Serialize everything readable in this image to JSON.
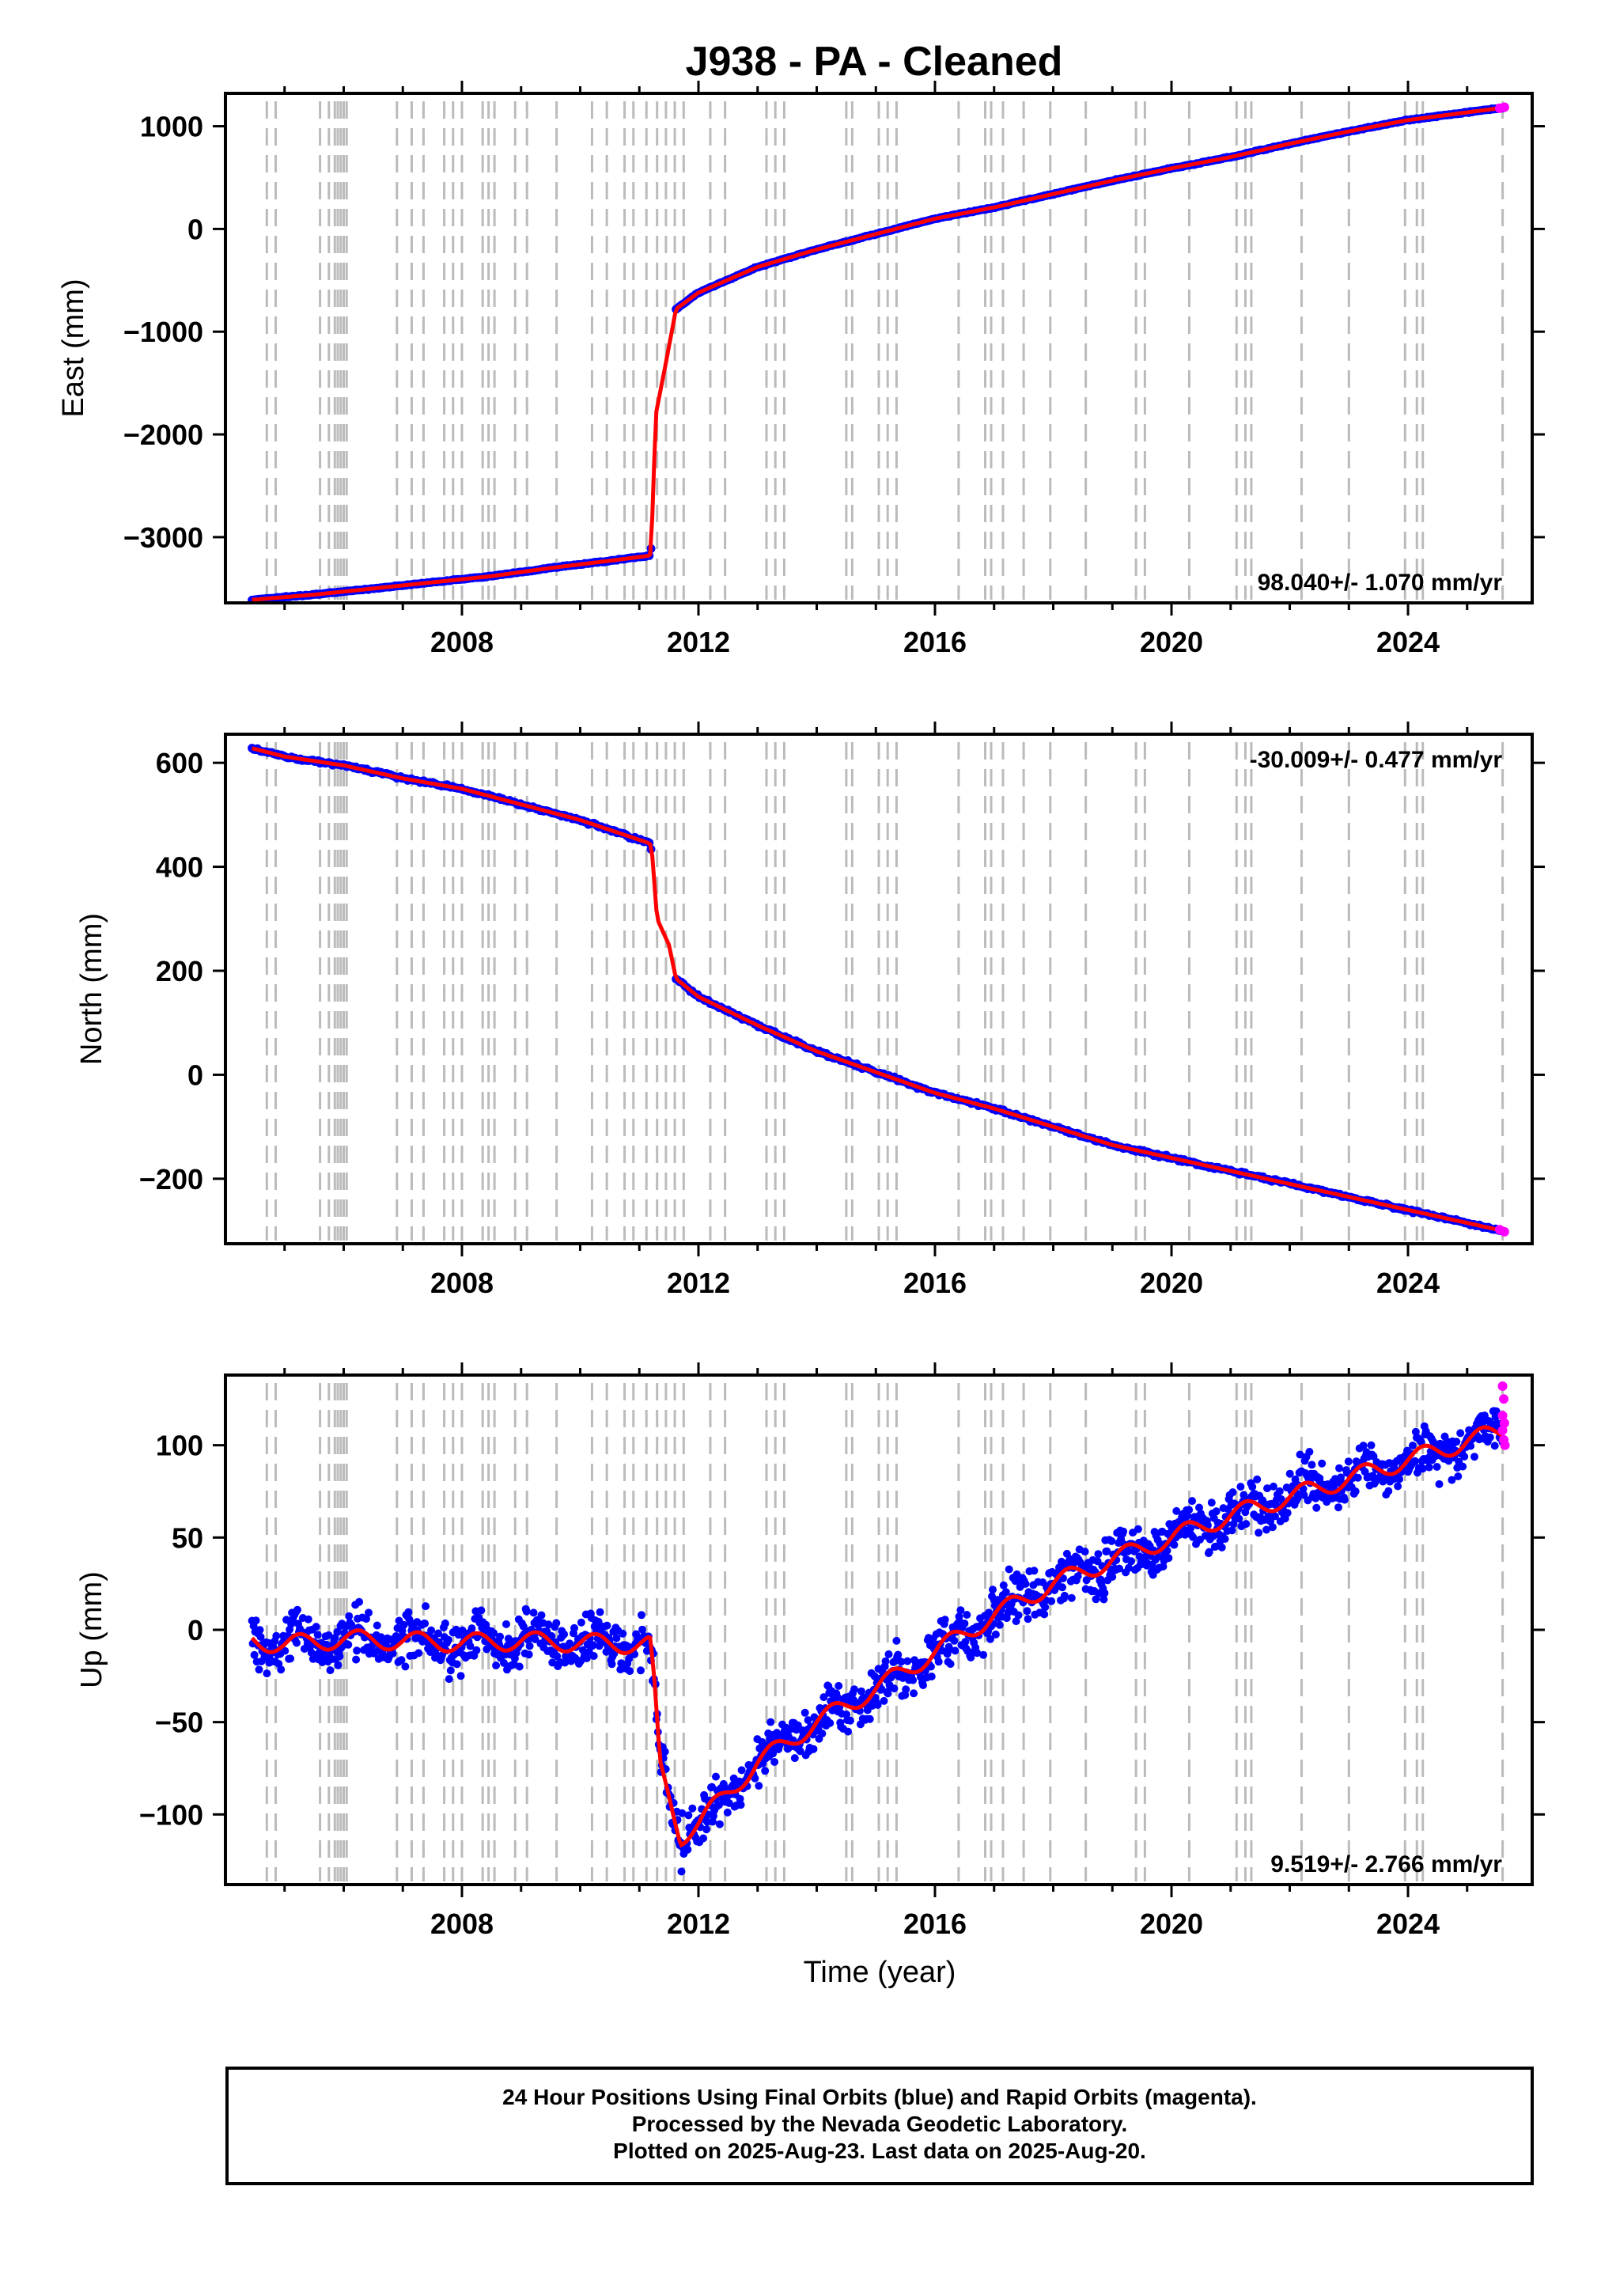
{
  "figure": {
    "title": "J938  - PA - Cleaned",
    "xlabel": "Time (year)",
    "footer_lines": [
      "24 Hour Positions Using Final Orbits (blue) and Rapid Orbits (magenta).",
      "Processed by the Nevada Geodetic Laboratory.",
      "Plotted on 2025-Aug-23. Last data on 2025-Aug-20."
    ],
    "colors": {
      "final_orbits": "#0000ff",
      "rapid_orbits": "#ff00ff",
      "model": "#ff0000",
      "events": "#bbbbbb"
    }
  },
  "chart_data": [
    {
      "type": "scatter",
      "ylabel": "East (mm)",
      "rate_label": "98.040+/- 1.070 mm/yr",
      "xlim": [
        2004.0,
        2026.1
      ],
      "ylim": [
        -3640,
        1320
      ],
      "xticks": [
        2008,
        2012,
        2016,
        2020,
        2024
      ],
      "yticks": [
        1000,
        0,
        -1000,
        -2000,
        -3000
      ],
      "ytick_labels": [
        "1000",
        "0",
        "−1000",
        "−2000",
        "−3000"
      ],
      "series": [
        {
          "points": [
            [
              2004.45,
              -3610
            ],
            [
              2005.5,
              -3560
            ],
            [
              2006.5,
              -3500
            ],
            [
              2007.5,
              -3440
            ],
            [
              2008.5,
              -3380
            ],
            [
              2009.5,
              -3300
            ],
            [
              2010.5,
              -3230
            ],
            [
              2011.18,
              -3180
            ],
            [
              2011.2,
              -3100
            ],
            [
              2011.28,
              -1800
            ],
            [
              2011.45,
              -1300
            ],
            [
              2011.62,
              -780
            ],
            [
              2012.0,
              -620
            ],
            [
              2013.0,
              -370
            ],
            [
              2014.0,
              -200
            ],
            [
              2015.0,
              -50
            ],
            [
              2016.0,
              100
            ],
            [
              2017.0,
              210
            ],
            [
              2018.0,
              340
            ],
            [
              2019.0,
              470
            ],
            [
              2020.0,
              590
            ],
            [
              2021.0,
              700
            ],
            [
              2022.0,
              830
            ],
            [
              2023.0,
              950
            ],
            [
              2024.0,
              1060
            ],
            [
              2025.6,
              1180
            ]
          ]
        }
      ],
      "rapid_points": [
        [
          2025.55,
          1175
        ],
        [
          2025.63,
          1185
        ]
      ]
    },
    {
      "type": "scatter",
      "ylabel": "North (mm)",
      "rate_label": "-30.009+/- 0.477 mm/yr",
      "xlim": [
        2004.0,
        2026.1
      ],
      "ylim": [
        -325,
        655
      ],
      "xticks": [
        2008,
        2012,
        2016,
        2020,
        2024
      ],
      "yticks": [
        600,
        400,
        200,
        0,
        -200
      ],
      "ytick_labels": [
        "600",
        "400",
        "200",
        "0",
        "−200"
      ],
      "series": [
        {
          "points": [
            [
              2004.45,
              628
            ],
            [
              2005.0,
              612
            ],
            [
              2006.0,
              595
            ],
            [
              2007.0,
              570
            ],
            [
              2008.0,
              550
            ],
            [
              2009.0,
              520
            ],
            [
              2010.0,
              490
            ],
            [
              2011.18,
              445
            ],
            [
              2011.22,
              420
            ],
            [
              2011.3,
              300
            ],
            [
              2011.5,
              250
            ],
            [
              2011.62,
              185
            ],
            [
              2012.0,
              150
            ],
            [
              2013.0,
              95
            ],
            [
              2014.0,
              45
            ],
            [
              2015.0,
              5
            ],
            [
              2016.0,
              -35
            ],
            [
              2017.0,
              -65
            ],
            [
              2018.0,
              -100
            ],
            [
              2019.0,
              -135
            ],
            [
              2020.0,
              -160
            ],
            [
              2021.0,
              -185
            ],
            [
              2022.0,
              -210
            ],
            [
              2023.0,
              -235
            ],
            [
              2024.0,
              -260
            ],
            [
              2025.6,
              -300
            ]
          ]
        }
      ],
      "rapid_points": [
        [
          2025.55,
          -298
        ],
        [
          2025.63,
          -302
        ]
      ]
    },
    {
      "type": "scatter",
      "ylabel": "Up (mm)",
      "rate_label": "9.519+/- 2.766 mm/yr",
      "xlim": [
        2004.0,
        2026.1
      ],
      "ylim": [
        -138,
        138
      ],
      "xticks": [
        2008,
        2012,
        2016,
        2020,
        2024
      ],
      "yticks": [
        100,
        50,
        0,
        -50,
        -100
      ],
      "ytick_labels": [
        "100",
        "50",
        "0",
        "−50",
        "−100"
      ],
      "series": [
        {
          "points": [
            [
              2004.45,
              -6
            ],
            [
              2005.0,
              -8
            ],
            [
              2006.0,
              -5
            ],
            [
              2007.0,
              -6
            ],
            [
              2008.0,
              -7
            ],
            [
              2009.0,
              -6
            ],
            [
              2010.0,
              -7
            ],
            [
              2011.18,
              -8
            ],
            [
              2011.25,
              -30
            ],
            [
              2011.35,
              -75
            ],
            [
              2011.5,
              -90
            ],
            [
              2011.7,
              -112
            ],
            [
              2012.0,
              -105
            ],
            [
              2012.5,
              -88
            ],
            [
              2013.0,
              -72
            ],
            [
              2014.0,
              -50
            ],
            [
              2015.0,
              -32
            ],
            [
              2016.0,
              -12
            ],
            [
              2017.0,
              8
            ],
            [
              2018.0,
              25
            ],
            [
              2019.0,
              38
            ],
            [
              2020.0,
              50
            ],
            [
              2021.0,
              62
            ],
            [
              2022.0,
              72
            ],
            [
              2023.0,
              82
            ],
            [
              2024.0,
              92
            ],
            [
              2025.6,
              108
            ]
          ]
        }
      ],
      "rapid_points": [
        [
          2025.6,
          132
        ],
        [
          2025.62,
          125
        ],
        [
          2025.6,
          116
        ],
        [
          2025.63,
          112
        ],
        [
          2025.6,
          108
        ],
        [
          2025.62,
          103
        ],
        [
          2025.64,
          100
        ]
      ]
    }
  ],
  "event_years": [
    2004.7,
    2004.85,
    2005.6,
    2005.75,
    2005.85,
    2005.9,
    2005.95,
    2006.0,
    2006.05,
    2006.9,
    2007.15,
    2007.35,
    2007.7,
    2007.85,
    2008.0,
    2008.35,
    2008.45,
    2008.55,
    2008.9,
    2009.1,
    2009.6,
    2010.2,
    2010.45,
    2010.75,
    2010.9,
    2011.12,
    2011.3,
    2011.45,
    2011.6,
    2011.75,
    2012.2,
    2012.45,
    2013.15,
    2013.3,
    2013.45,
    2014.5,
    2014.6,
    2015.05,
    2015.2,
    2015.35,
    2016.4,
    2016.85,
    2016.95,
    2017.15,
    2017.5,
    2017.95,
    2018.55,
    2019.4,
    2019.55,
    2020.3,
    2021.1,
    2021.25,
    2021.35,
    2022.2,
    2023.0,
    2023.95,
    2024.15,
    2024.25,
    2025.6
  ]
}
